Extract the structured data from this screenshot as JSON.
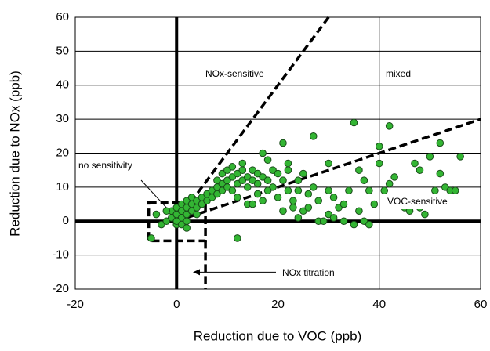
{
  "chart_data": {
    "type": "scatter",
    "x_label": "Reduction due to VOC (ppb)",
    "y_label": "Reduction due to NOx (ppb)",
    "xlim": [
      -20,
      60
    ],
    "xticks": [
      -20,
      0,
      20,
      40,
      60
    ],
    "ylim": [
      -20,
      60
    ],
    "yticks": [
      -20,
      -10,
      0,
      10,
      20,
      30,
      40,
      50,
      60
    ],
    "grid": true,
    "color": "#33b533",
    "annotations": [
      "NOx-sensitive",
      "mixed",
      "no sensitivity",
      "VOC-sensitive",
      "NOx titration"
    ],
    "x": [
      -4,
      -3,
      -2,
      -1,
      -1,
      0,
      0,
      0,
      1,
      1,
      1,
      2,
      2,
      2,
      3,
      3,
      3,
      4,
      4,
      5,
      5,
      0,
      1,
      -2,
      2,
      -5,
      2,
      4,
      6,
      6,
      7,
      7,
      8,
      8,
      8,
      9,
      9,
      9,
      10,
      10,
      10,
      11,
      11,
      12,
      12,
      12,
      13,
      13,
      14,
      14,
      15,
      15,
      16,
      16,
      17,
      17,
      18,
      18,
      19,
      19,
      20,
      11,
      13,
      14,
      12,
      15,
      16,
      17,
      18,
      20,
      21,
      21,
      22,
      22,
      22,
      23,
      23,
      24,
      24,
      25,
      25,
      26,
      27,
      27,
      28,
      28,
      29,
      30,
      30,
      31,
      32,
      33,
      34,
      35,
      35,
      36,
      37,
      37,
      38,
      38,
      39,
      40,
      40,
      41,
      42,
      42,
      43,
      44,
      45,
      46,
      47,
      48,
      48,
      49,
      50,
      51,
      52,
      52,
      53,
      54,
      55,
      56,
      30,
      31,
      26,
      24,
      21,
      36,
      33,
      46
    ],
    "y": [
      2,
      -1,
      0,
      1,
      3,
      2,
      4,
      -1,
      1,
      3,
      5,
      2,
      4,
      6,
      3,
      5,
      7,
      4,
      6,
      5,
      7,
      0,
      -1,
      3,
      0,
      -5,
      -2,
      2,
      6,
      8,
      7,
      9,
      8,
      10,
      12,
      9,
      11,
      14,
      10,
      12,
      15,
      9,
      13,
      11,
      14,
      7,
      12,
      15,
      13,
      10,
      12,
      15,
      11,
      14,
      13,
      20,
      18,
      12,
      10,
      15,
      14,
      16,
      17,
      5,
      -5,
      5,
      8,
      6,
      9,
      7,
      12,
      23,
      17,
      15,
      9,
      6,
      4,
      12,
      9,
      14,
      3,
      8,
      25,
      10,
      6,
      0,
      0,
      9,
      17,
      7,
      4,
      5,
      9,
      29,
      -1,
      15,
      12,
      0,
      -1,
      9,
      5,
      22,
      17,
      9,
      28,
      11,
      13,
      6,
      4,
      3,
      17,
      15,
      4,
      2,
      19,
      9,
      14,
      23,
      10,
      9,
      9,
      19,
      2,
      1,
      4,
      1,
      3,
      3,
      0,
      6
    ]
  }
}
